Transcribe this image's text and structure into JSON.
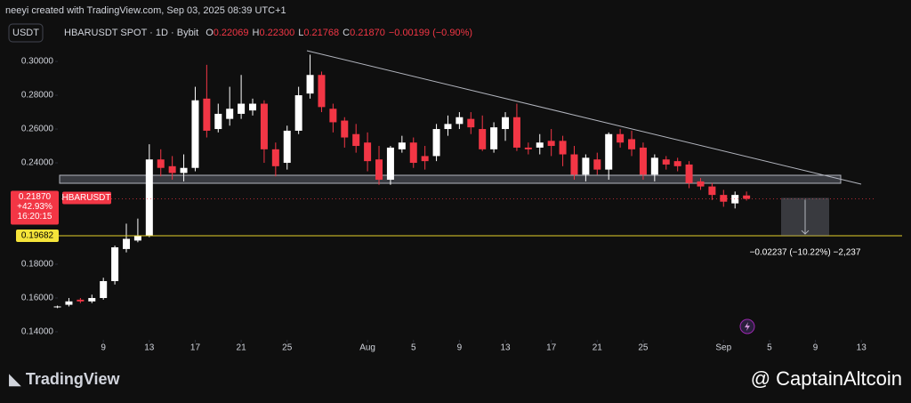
{
  "header": {
    "attribution": "neeyi created with TradingView.com, Sep 03, 2025 08:39 UTC+1",
    "currency_button": "USDT",
    "symbol": "HBARUSDT SPOT · 1D · Bybit",
    "ohlc": [
      {
        "label": "O",
        "value": "0.22069"
      },
      {
        "label": "H",
        "value": "0.22300"
      },
      {
        "label": "L",
        "value": "0.21768"
      },
      {
        "label": "C",
        "value": "0.21870"
      }
    ],
    "change": "−0.00199 (−0.90%)"
  },
  "chart_data": {
    "type": "candlestick",
    "up_color": "#ffffff",
    "down_color": "#f23645",
    "series": [
      {
        "name": "HBARUSDT",
        "open": [
          0.1545,
          0.156,
          0.159,
          0.158,
          0.16,
          0.17,
          0.189,
          0.194,
          0.197,
          0.242,
          0.238,
          0.234,
          0.237,
          0.278,
          0.26,
          0.266,
          0.269,
          0.271,
          0.275,
          0.248,
          0.24,
          0.259,
          0.281,
          0.292,
          0.272,
          0.265,
          0.257,
          0.252,
          0.242,
          0.23,
          0.248,
          0.252,
          0.244,
          0.244,
          0.26,
          0.263,
          0.266,
          0.26,
          0.248,
          0.26,
          0.267,
          0.249,
          0.249,
          0.253,
          0.253,
          0.245,
          0.233,
          0.242,
          0.236,
          0.257,
          0.254,
          0.249,
          0.233,
          0.242,
          0.241,
          0.239,
          0.229,
          0.226,
          0.221,
          0.216,
          0.22069
        ],
        "high": [
          0.1555,
          0.16,
          0.16,
          0.162,
          0.172,
          0.191,
          0.204,
          0.207,
          0.251,
          0.248,
          0.244,
          0.245,
          0.285,
          0.298,
          0.275,
          0.285,
          0.292,
          0.278,
          0.277,
          0.252,
          0.262,
          0.285,
          0.304,
          0.294,
          0.275,
          0.267,
          0.263,
          0.258,
          0.25,
          0.25,
          0.256,
          0.255,
          0.25,
          0.263,
          0.268,
          0.27,
          0.27,
          0.268,
          0.264,
          0.27,
          0.275,
          0.252,
          0.257,
          0.26,
          0.256,
          0.25,
          0.245,
          0.246,
          0.258,
          0.26,
          0.259,
          0.252,
          0.245,
          0.244,
          0.243,
          0.241,
          0.231,
          0.228,
          0.224,
          0.223,
          0.223
        ],
        "low": [
          0.154,
          0.155,
          0.157,
          0.157,
          0.159,
          0.168,
          0.187,
          0.193,
          0.196,
          0.232,
          0.23,
          0.229,
          0.235,
          0.255,
          0.258,
          0.262,
          0.266,
          0.268,
          0.24,
          0.232,
          0.236,
          0.257,
          0.278,
          0.27,
          0.258,
          0.249,
          0.246,
          0.235,
          0.227,
          0.227,
          0.246,
          0.237,
          0.236,
          0.241,
          0.256,
          0.26,
          0.257,
          0.247,
          0.246,
          0.253,
          0.247,
          0.245,
          0.245,
          0.244,
          0.238,
          0.23,
          0.229,
          0.233,
          0.23,
          0.249,
          0.244,
          0.23,
          0.229,
          0.236,
          0.235,
          0.225,
          0.224,
          0.218,
          0.214,
          0.213,
          0.21768
        ],
        "close": [
          0.155,
          0.158,
          0.158,
          0.16,
          0.17,
          0.19,
          0.195,
          0.197,
          0.242,
          0.237,
          0.234,
          0.237,
          0.277,
          0.259,
          0.269,
          0.272,
          0.275,
          0.275,
          0.248,
          0.238,
          0.259,
          0.28,
          0.292,
          0.273,
          0.264,
          0.255,
          0.25,
          0.241,
          0.23,
          0.249,
          0.252,
          0.24,
          0.241,
          0.26,
          0.263,
          0.267,
          0.261,
          0.248,
          0.261,
          0.267,
          0.249,
          0.248,
          0.252,
          0.25,
          0.245,
          0.233,
          0.243,
          0.236,
          0.257,
          0.252,
          0.248,
          0.233,
          0.243,
          0.239,
          0.238,
          0.228,
          0.226,
          0.221,
          0.217,
          0.221,
          0.2187
        ]
      }
    ],
    "ylim": [
      0.1363,
      0.3153
    ],
    "yticks": [
      {
        "value": 0.3,
        "label": "0.30000"
      },
      {
        "value": 0.28,
        "label": "0.28000"
      },
      {
        "value": 0.26,
        "label": "0.26000"
      },
      {
        "value": 0.24,
        "label": "0.24000"
      },
      {
        "value": 0.18,
        "label": "0.18000"
      },
      {
        "value": 0.16,
        "label": "0.16000"
      },
      {
        "value": 0.14,
        "label": "0.14000"
      }
    ],
    "xlim": [
      -5,
      71.3
    ],
    "xticks": [
      {
        "value": 4,
        "label": "9"
      },
      {
        "value": 8,
        "label": "13"
      },
      {
        "value": 12,
        "label": "17"
      },
      {
        "value": 16,
        "label": "21"
      },
      {
        "value": 20,
        "label": "25"
      },
      {
        "value": 27,
        "label": "Aug"
      },
      {
        "value": 31,
        "label": "5"
      },
      {
        "value": 35,
        "label": "9"
      },
      {
        "value": 39,
        "label": "13"
      },
      {
        "value": 43,
        "label": "17"
      },
      {
        "value": 47,
        "label": "21"
      },
      {
        "value": 51,
        "label": "25"
      },
      {
        "value": 58,
        "label": "Sep"
      },
      {
        "value": 62,
        "label": "5"
      },
      {
        "value": 66,
        "label": "9"
      },
      {
        "value": 70,
        "label": "13"
      }
    ],
    "last_price": {
      "value": 0.2187,
      "label": "0.21870",
      "change": "+42.93%",
      "countdown": "16:20:15",
      "symbol": "HBARUSDT"
    },
    "price_line": {
      "value": 0.19682,
      "label": "0.19682"
    },
    "measure": {
      "label": "−0.02237 (−10.22%) −2,237"
    }
  },
  "footer": {
    "brand": "TradingView",
    "watermark": "@ CaptainAltcoin"
  }
}
